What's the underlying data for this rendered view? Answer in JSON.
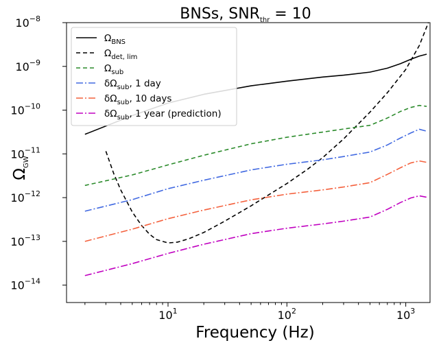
{
  "chart_data": {
    "type": "line",
    "title": "BNSs, SNR_thr = 10",
    "title_main": "BNSs, SNR",
    "title_sub": "thr",
    "title_tail": " = 10",
    "xlabel": "Frequency (Hz)",
    "ylabel_main": "Ω",
    "ylabel_sub": "GW",
    "xscale": "log",
    "yscale": "log",
    "xlim": [
      1.4,
      1600
    ],
    "ylim": [
      4e-15,
      1e-08
    ],
    "grid": false,
    "legend_position": "top-left",
    "x_ticks": [
      {
        "value": 10,
        "base": "10",
        "exp": "1"
      },
      {
        "value": 100,
        "base": "10",
        "exp": "2"
      },
      {
        "value": 1000,
        "base": "10",
        "exp": "3"
      }
    ],
    "y_ticks": [
      {
        "value": 1e-14,
        "base": "10",
        "exp": "−14"
      },
      {
        "value": 1e-13,
        "base": "10",
        "exp": "−13"
      },
      {
        "value": 1e-12,
        "base": "10",
        "exp": "−12"
      },
      {
        "value": 1e-11,
        "base": "10",
        "exp": "−11"
      },
      {
        "value": 1e-10,
        "base": "10",
        "exp": "−10"
      },
      {
        "value": 1e-09,
        "base": "10",
        "exp": "−9"
      },
      {
        "value": 1e-08,
        "base": "10",
        "exp": "−8"
      }
    ],
    "series": [
      {
        "name": "Ω_BNS",
        "label_main": "Ω",
        "label_sub": "BNS",
        "label_tail": "",
        "color": "#000000",
        "dash": "",
        "x": [
          2,
          5,
          10,
          20,
          50,
          100,
          200,
          300,
          500,
          700,
          900,
          1100,
          1300,
          1500
        ],
        "y": [
          2.8e-11,
          7.5e-11,
          1.45e-10,
          2.3e-10,
          3.6e-10,
          4.6e-10,
          5.7e-10,
          6.3e-10,
          7.4e-10,
          9.1e-10,
          1.15e-09,
          1.45e-09,
          1.72e-09,
          1.9e-09
        ]
      },
      {
        "name": "Ω_det, lim",
        "label_main": "Ω",
        "label_sub": "det, lim",
        "label_tail": "",
        "color": "#000000",
        "dash": "6,4",
        "x": [
          3,
          3.5,
          4,
          5,
          6,
          7,
          8,
          10,
          12,
          15,
          20,
          30,
          50,
          70,
          100,
          150,
          200,
          300,
          500,
          700,
          1000,
          1300,
          1550
        ],
        "y": [
          1.15e-11,
          3.5e-12,
          1.5e-12,
          4.7e-13,
          2.3e-13,
          1.45e-13,
          1.1e-13,
          9.2e-14,
          9.6e-14,
          1.15e-13,
          1.6e-13,
          2.9e-13,
          6.5e-13,
          1.15e-12,
          2.1e-12,
          4.5e-12,
          8.2e-12,
          2.2e-11,
          9e-11,
          2.5e-10,
          8.5e-10,
          3e-09,
          1e-08
        ]
      },
      {
        "name": "Ω_sub",
        "label_main": "Ω",
        "label_sub": "sub",
        "label_tail": "",
        "color": "#2a8a2a",
        "dash": "6,4",
        "x": [
          2,
          5,
          10,
          20,
          50,
          100,
          200,
          300,
          500,
          700,
          900,
          1100,
          1300,
          1500
        ],
        "y": [
          1.9e-12,
          3.3e-12,
          5.6e-12,
          9.3e-12,
          1.7e-11,
          2.4e-11,
          3.15e-11,
          3.7e-11,
          4.5e-11,
          6.6e-11,
          9.3e-11,
          1.15e-10,
          1.28e-10,
          1.22e-10
        ]
      },
      {
        "name": "δΩ_sub, 1 day",
        "label_main": "δΩ",
        "label_sub": "sub",
        "label_tail": ", 1 day",
        "color": "#4169e1",
        "dash": "10,3,2,3",
        "x": [
          2,
          5,
          10,
          20,
          50,
          100,
          200,
          300,
          500,
          700,
          900,
          1100,
          1300,
          1500
        ],
        "y": [
          4.9e-13,
          9e-13,
          1.6e-12,
          2.5e-12,
          4.3e-12,
          5.8e-12,
          7.3e-12,
          8.7e-12,
          1.1e-11,
          1.6e-11,
          2.3e-11,
          3e-11,
          3.65e-11,
          3.3e-11
        ]
      },
      {
        "name": "δΩ_sub, 10 days",
        "label_main": "δΩ",
        "label_sub": "sub",
        "label_tail": ", 10 days",
        "color": "#f4603c",
        "dash": "10,3,2,3",
        "x": [
          2,
          5,
          10,
          20,
          50,
          100,
          200,
          300,
          500,
          700,
          900,
          1100,
          1300,
          1500
        ],
        "y": [
          1e-13,
          1.9e-13,
          3.3e-13,
          5.2e-13,
          8.9e-13,
          1.2e-12,
          1.5e-12,
          1.75e-12,
          2.2e-12,
          3.4e-12,
          4.8e-12,
          6.2e-12,
          6.9e-12,
          6.4e-12
        ]
      },
      {
        "name": "δΩ_sub, 1 year (prediction)",
        "label_main": "δΩ",
        "label_sub": "sub",
        "label_tail": ", 1 year (prediction)",
        "color": "#c000c0",
        "dash": "10,3,2,3",
        "x": [
          2,
          5,
          10,
          20,
          50,
          100,
          200,
          300,
          500,
          700,
          900,
          1100,
          1300,
          1500
        ],
        "y": [
          1.65e-14,
          3.1e-14,
          5.3e-14,
          8.6e-14,
          1.5e-13,
          2e-13,
          2.5e-13,
          2.9e-13,
          3.6e-13,
          5.4e-13,
          7.7e-13,
          9.8e-13,
          1.1e-12,
          1.02e-12
        ]
      }
    ]
  }
}
